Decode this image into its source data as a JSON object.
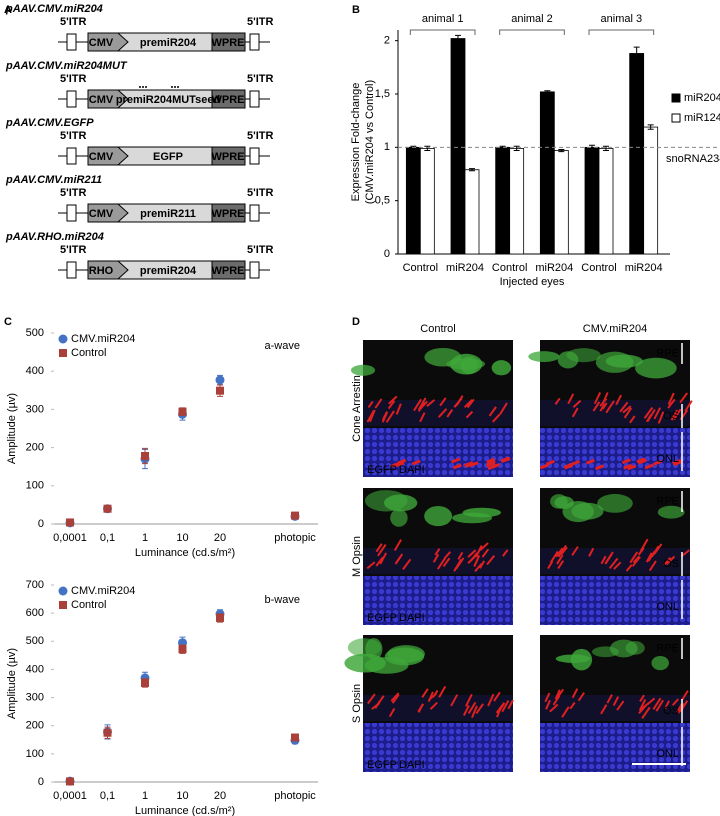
{
  "panel_labels": [
    "A",
    "B",
    "C",
    "D"
  ],
  "constructs": [
    {
      "name": "pAAV.CMV.miR204",
      "itr_left": "5'ITR",
      "itr_right": "5'ITR",
      "promoter": "CMV",
      "gene": "premiR204",
      "wpre": "WPRE"
    },
    {
      "name": "pAAV.CMV.miR204MUT",
      "itr_left": "5'ITR",
      "itr_right": "5'ITR",
      "promoter": "CMV",
      "gene": "premiR204MUTseed",
      "wpre": "WPRE"
    },
    {
      "name": "pAAV.CMV.EGFP",
      "itr_left": "5'ITR",
      "itr_right": "5'ITR",
      "promoter": "CMV",
      "gene": "EGFP",
      "wpre": "WPRE"
    },
    {
      "name": "pAAV.CMV.miR211",
      "itr_left": "5'ITR",
      "itr_right": "5'ITR",
      "promoter": "CMV",
      "gene": "premiR211",
      "wpre": "WPRE"
    },
    {
      "name": "pAAV.RHO.miR204",
      "itr_left": "5'ITR",
      "itr_right": "5'ITR",
      "promoter": "RHO",
      "gene": "premiR204",
      "wpre": "WPRE"
    }
  ],
  "chart_data": [
    {
      "type": "bar",
      "categories": [
        "Control",
        "miR204",
        "Control",
        "miR204",
        "Control",
        "miR204"
      ],
      "groups": [
        "animal 1",
        "animal 2",
        "animal 3"
      ],
      "series": [
        {
          "name": "miR204",
          "color": "#000000",
          "values": [
            1.0,
            2.02,
            1.0,
            1.52,
            1.0,
            1.88
          ],
          "errors": [
            0.01,
            0.03,
            0.01,
            0.01,
            0.02,
            0.06
          ]
        },
        {
          "name": "miR124",
          "color": "#ffffff",
          "values": [
            0.99,
            0.79,
            0.99,
            0.97,
            0.99,
            1.19
          ],
          "errors": [
            0.02,
            0.01,
            0.02,
            0.01,
            0.02,
            0.02
          ]
        }
      ],
      "ylim": [
        0,
        2.1
      ],
      "yticks": [
        0,
        {
          "value": 0.5,
          "label": "0,5"
        },
        1,
        {
          "value": 1.5,
          "label": "1,5"
        },
        2
      ],
      "y_label": [
        "Expression Fold-change",
        "(CMV.miR204  vs Control)"
      ],
      "x_label": "Injected eyes",
      "reference_line": {
        "value": 1,
        "label": "snoRNA234"
      }
    },
    {
      "type": "scatter",
      "title": "a-wave",
      "categories": [
        "0,0001",
        "0,1",
        "1",
        "10",
        "20",
        null,
        "photopic"
      ],
      "series": [
        {
          "name": "CMV.miR204",
          "color": "#4472c4",
          "marker": "circle",
          "values": [
            3,
            40,
            170,
            287,
            377,
            null,
            20
          ],
          "errors": [
            2,
            5,
            25,
            15,
            12,
            null,
            4
          ]
        },
        {
          "name": "Control",
          "color": "#a9403a",
          "marker": "square",
          "values": [
            4,
            40,
            178,
            294,
            349,
            null,
            22
          ],
          "errors": [
            2,
            4,
            20,
            10,
            15,
            null,
            4
          ]
        }
      ],
      "ylim": [
        0,
        500
      ],
      "yticks": [
        0,
        100,
        200,
        300,
        400,
        500
      ],
      "y_label": "Amplitude (µv)",
      "x_label": "Luminance (cd.s/m²)"
    },
    {
      "type": "scatter",
      "title": "b-wave",
      "categories": [
        "0,0001",
        "0,1",
        "1",
        "10",
        "20",
        null,
        "photopic"
      ],
      "series": [
        {
          "name": "CMV.miR204",
          "color": "#4472c4",
          "marker": "circle",
          "values": [
            3,
            178,
            370,
            495,
            597,
            null,
            148
          ],
          "errors": [
            3,
            25,
            20,
            20,
            15,
            null,
            12
          ]
        },
        {
          "name": "Control",
          "color": "#a9403a",
          "marker": "square",
          "values": [
            2,
            175,
            352,
            472,
            583,
            null,
            158
          ],
          "errors": [
            3,
            20,
            15,
            15,
            15,
            null,
            12
          ]
        }
      ],
      "ylim": [
        0,
        700
      ],
      "yticks": [
        0,
        100,
        200,
        300,
        400,
        500,
        600,
        700
      ],
      "y_label": "Amplitude (µv)",
      "x_label": "Luminance (cd.s/m²)"
    }
  ],
  "images": {
    "columns": [
      "Control",
      "CMV.miR204"
    ],
    "rows": [
      "Cone Arrestin",
      "M Opsin",
      "S Opsin"
    ],
    "layers": [
      "RPE",
      "OS",
      "ONL"
    ],
    "stain_green": "EGFP",
    "stain_blue": "DAPI"
  }
}
